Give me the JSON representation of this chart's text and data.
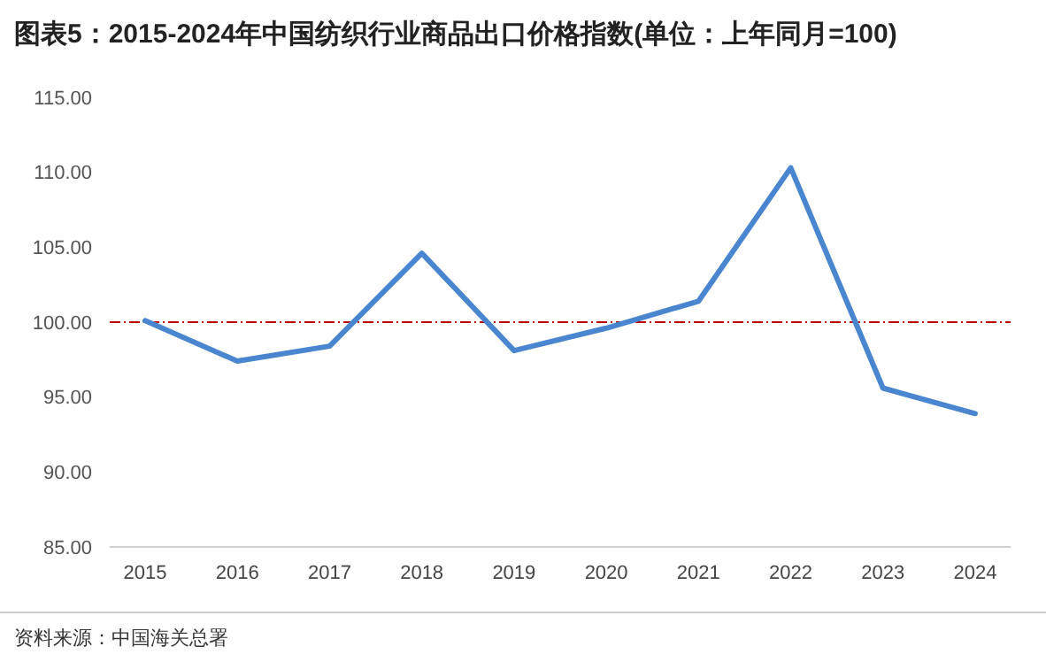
{
  "chart_data": {
    "type": "line",
    "title": "图表5：2015-2024年中国纺织行业商品出口价格指数(单位：上年同月=100)",
    "categories": [
      "2015",
      "2016",
      "2017",
      "2018",
      "2019",
      "2020",
      "2021",
      "2022",
      "2023",
      "2024"
    ],
    "series": [
      {
        "color": "#4a86d0",
        "values": [
          100.1,
          97.4,
          98.4,
          104.6,
          98.1,
          99.6,
          101.4,
          110.3,
          95.6,
          93.9
        ]
      }
    ],
    "ylim": [
      85,
      115
    ],
    "yticks": [
      {
        "value": 85,
        "label": "85.00"
      },
      {
        "value": 90,
        "label": "90.00"
      },
      {
        "value": 95,
        "label": "95.00"
      },
      {
        "value": 100,
        "label": "100.00"
      },
      {
        "value": 105,
        "label": "105.00"
      },
      {
        "value": 110,
        "label": "110.00"
      },
      {
        "value": 115,
        "label": "115.00"
      }
    ],
    "ref_lines": [
      {
        "axis": "y",
        "value": 100,
        "color": "#c00000",
        "line_style": "dashdot"
      }
    ],
    "grid": false,
    "marker": "none",
    "line_style": "solid",
    "annotations": [
      "资料来源：中国海关总署"
    ]
  }
}
